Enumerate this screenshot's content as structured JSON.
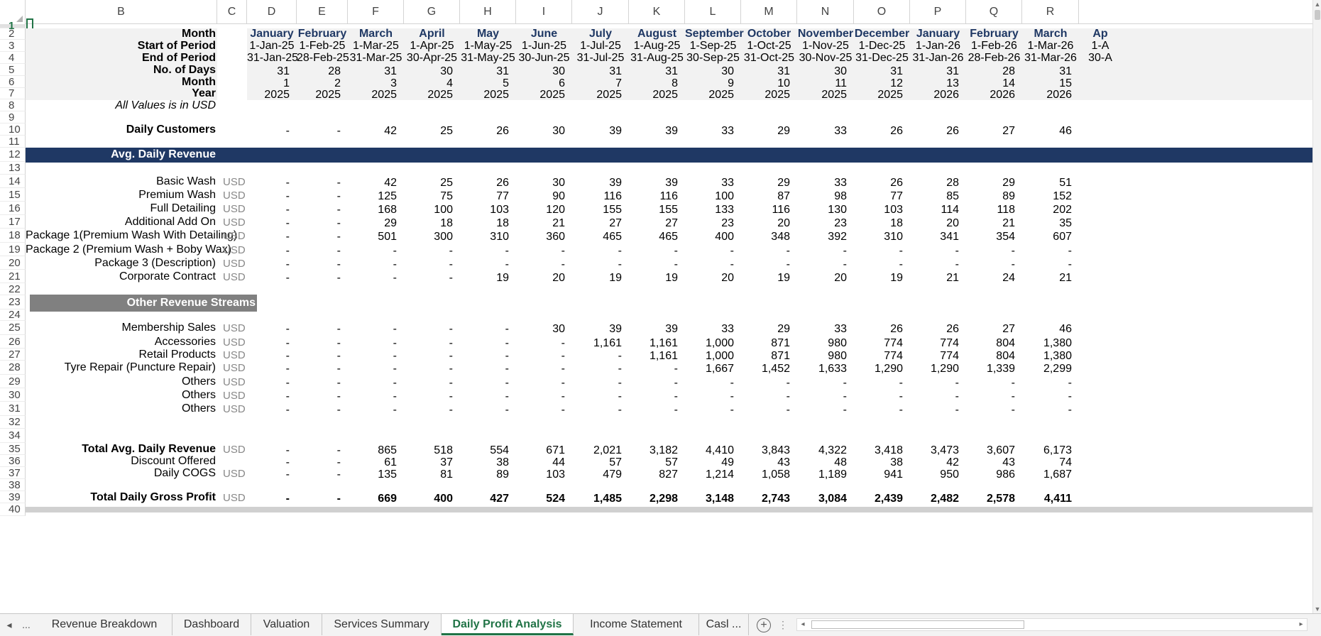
{
  "window": {
    "selected_cell_row": "1"
  },
  "columns": [
    "B",
    "C",
    "D",
    "E",
    "F",
    "G",
    "H",
    "I",
    "J",
    "K",
    "L",
    "M",
    "N",
    "O",
    "P",
    "Q",
    "R"
  ],
  "row_numbers": [
    "1",
    "2",
    "3",
    "4",
    "5",
    "6",
    "7",
    "8",
    "9",
    "10",
    "11",
    "12",
    "13",
    "14",
    "15",
    "16",
    "17",
    "18",
    "19",
    "20",
    "21",
    "22",
    "23",
    "24",
    "25",
    "26",
    "27",
    "28",
    "29",
    "30",
    "31",
    "32",
    "34",
    "35",
    "36",
    "37",
    "38",
    "39",
    "40"
  ],
  "header": {
    "labels": [
      "Month",
      "Start of Period",
      "End of Period",
      "No. of Days",
      "Month",
      "Year"
    ],
    "months": [
      "January",
      "February",
      "March",
      "April",
      "May",
      "June",
      "July",
      "August",
      "September",
      "October",
      "November",
      "December",
      "January",
      "February",
      "March",
      "Ap"
    ],
    "start": [
      "1-Jan-25",
      "1-Feb-25",
      "1-Mar-25",
      "1-Apr-25",
      "1-May-25",
      "1-Jun-25",
      "1-Jul-25",
      "1-Aug-25",
      "1-Sep-25",
      "1-Oct-25",
      "1-Nov-25",
      "1-Dec-25",
      "1-Jan-26",
      "1-Feb-26",
      "1-Mar-26",
      "1-A"
    ],
    "end": [
      "31-Jan-25",
      "28-Feb-25",
      "31-Mar-25",
      "30-Apr-25",
      "31-May-25",
      "30-Jun-25",
      "31-Jul-25",
      "31-Aug-25",
      "30-Sep-25",
      "31-Oct-25",
      "30-Nov-25",
      "31-Dec-25",
      "31-Jan-26",
      "28-Feb-26",
      "31-Mar-26",
      "30-A"
    ],
    "days": [
      "31",
      "28",
      "31",
      "30",
      "31",
      "30",
      "31",
      "31",
      "30",
      "31",
      "30",
      "31",
      "31",
      "28",
      "31"
    ],
    "month_no": [
      "1",
      "2",
      "3",
      "4",
      "5",
      "6",
      "7",
      "8",
      "9",
      "10",
      "11",
      "12",
      "13",
      "14",
      "15"
    ],
    "year": [
      "2025",
      "2025",
      "2025",
      "2025",
      "2025",
      "2025",
      "2025",
      "2025",
      "2025",
      "2025",
      "2025",
      "2025",
      "2026",
      "2026",
      "2026"
    ]
  },
  "note": "All Values is in USD",
  "daily_customers": {
    "label": "Daily Customers",
    "values": [
      "-",
      "-",
      "42",
      "25",
      "26",
      "30",
      "39",
      "39",
      "33",
      "29",
      "33",
      "26",
      "26",
      "27",
      "46"
    ]
  },
  "section_avg": {
    "title": "Avg. Daily Revenue"
  },
  "avg_rows": [
    {
      "label": "Basic Wash",
      "unit": "USD",
      "values": [
        "-",
        "-",
        "42",
        "25",
        "26",
        "30",
        "39",
        "39",
        "33",
        "29",
        "33",
        "26",
        "28",
        "29",
        "51"
      ]
    },
    {
      "label": "Premium Wash",
      "unit": "USD",
      "values": [
        "-",
        "-",
        "125",
        "75",
        "77",
        "90",
        "116",
        "116",
        "100",
        "87",
        "98",
        "77",
        "85",
        "89",
        "152"
      ]
    },
    {
      "label": "Full Detailing",
      "unit": "USD",
      "values": [
        "-",
        "-",
        "168",
        "100",
        "103",
        "120",
        "155",
        "155",
        "133",
        "116",
        "130",
        "103",
        "114",
        "118",
        "202"
      ]
    },
    {
      "label": "Additional Add On",
      "unit": "USD",
      "values": [
        "-",
        "-",
        "29",
        "18",
        "18",
        "21",
        "27",
        "27",
        "23",
        "20",
        "23",
        "18",
        "20",
        "21",
        "35"
      ]
    },
    {
      "label": "Package 1(Premium Wash With Detailing)",
      "unit": "USD",
      "values": [
        "-",
        "-",
        "501",
        "300",
        "310",
        "360",
        "465",
        "465",
        "400",
        "348",
        "392",
        "310",
        "341",
        "354",
        "607"
      ]
    },
    {
      "label": "Package 2 (Premium Wash + Boby Wax)",
      "unit": "USD",
      "values": [
        "-",
        "-",
        "-",
        "-",
        "-",
        "-",
        "-",
        "-",
        "-",
        "-",
        "-",
        "-",
        "-",
        "-",
        "-"
      ]
    },
    {
      "label": "Package 3 (Description)",
      "unit": "USD",
      "values": [
        "-",
        "-",
        "-",
        "-",
        "-",
        "-",
        "-",
        "-",
        "-",
        "-",
        "-",
        "-",
        "-",
        "-",
        "-"
      ]
    },
    {
      "label": "Corporate Contract",
      "unit": "USD",
      "values": [
        "-",
        "-",
        "-",
        "-",
        "19",
        "20",
        "19",
        "19",
        "20",
        "19",
        "20",
        "19",
        "21",
        "24",
        "21"
      ]
    }
  ],
  "section_other": {
    "title": "Other Revenue Streams"
  },
  "other_rows": [
    {
      "label": "Membership Sales",
      "unit": "USD",
      "values": [
        "-",
        "-",
        "-",
        "-",
        "-",
        "30",
        "39",
        "39",
        "33",
        "29",
        "33",
        "26",
        "26",
        "27",
        "46"
      ]
    },
    {
      "label": "Accessories",
      "unit": "USD",
      "values": [
        "-",
        "-",
        "-",
        "-",
        "-",
        "-",
        "1,161",
        "1,161",
        "1,000",
        "871",
        "980",
        "774",
        "774",
        "804",
        "1,380"
      ]
    },
    {
      "label": "Retail Products",
      "unit": "USD",
      "values": [
        "-",
        "-",
        "-",
        "-",
        "-",
        "-",
        "-",
        "1,161",
        "1,000",
        "871",
        "980",
        "774",
        "774",
        "804",
        "1,380"
      ]
    },
    {
      "label": "Tyre Repair (Puncture Repair)",
      "unit": "USD",
      "values": [
        "-",
        "-",
        "-",
        "-",
        "-",
        "-",
        "-",
        "-",
        "1,667",
        "1,452",
        "1,633",
        "1,290",
        "1,290",
        "1,339",
        "2,299"
      ]
    },
    {
      "label": "Others",
      "unit": "USD",
      "values": [
        "-",
        "-",
        "-",
        "-",
        "-",
        "-",
        "-",
        "-",
        "-",
        "-",
        "-",
        "-",
        "-",
        "-",
        "-"
      ]
    },
    {
      "label": "Others",
      "unit": "USD",
      "values": [
        "-",
        "-",
        "-",
        "-",
        "-",
        "-",
        "-",
        "-",
        "-",
        "-",
        "-",
        "-",
        "-",
        "-",
        "-"
      ]
    },
    {
      "label": "Others",
      "unit": "USD",
      "values": [
        "-",
        "-",
        "-",
        "-",
        "-",
        "-",
        "-",
        "-",
        "-",
        "-",
        "-",
        "-",
        "-",
        "-",
        "-"
      ]
    }
  ],
  "totals": [
    {
      "label": "Total Avg. Daily Revenue",
      "unit": "USD",
      "bold": true,
      "values": [
        "-",
        "-",
        "865",
        "518",
        "554",
        "671",
        "2,021",
        "3,182",
        "4,410",
        "3,843",
        "4,322",
        "3,418",
        "3,473",
        "3,607",
        "6,173"
      ]
    },
    {
      "label": "Discount Offered",
      "unit": "",
      "bold": false,
      "values": [
        "-",
        "-",
        "61",
        "37",
        "38",
        "44",
        "57",
        "57",
        "49",
        "43",
        "48",
        "38",
        "42",
        "43",
        "74"
      ]
    },
    {
      "label": "Daily COGS",
      "unit": "USD",
      "bold": false,
      "values": [
        "-",
        "-",
        "135",
        "81",
        "89",
        "103",
        "479",
        "827",
        "1,214",
        "1,058",
        "1,189",
        "941",
        "950",
        "986",
        "1,687"
      ]
    }
  ],
  "gross_profit": {
    "label": "Total Daily Gross Profit",
    "unit": "USD",
    "values": [
      "-",
      "-",
      "669",
      "400",
      "427",
      "524",
      "1,485",
      "2,298",
      "3,148",
      "2,743",
      "3,084",
      "2,439",
      "2,482",
      "2,578",
      "4,411"
    ]
  },
  "tabs": {
    "nav_prev": "◂",
    "nav_more": "...",
    "items": [
      "Revenue Breakdown",
      "Dashboard",
      "Valuation",
      "Services Summary",
      "Daily Profit Analysis",
      "Income Statement",
      "Casl ..."
    ],
    "active": "Daily Profit Analysis",
    "add": "+"
  },
  "colors": {
    "navy": "#1f3864",
    "gray": "#808080",
    "band": "#f2f2f2",
    "excel_green": "#217346"
  }
}
